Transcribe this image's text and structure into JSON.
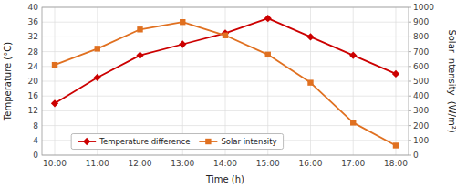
{
  "chart_data": {
    "type": "line",
    "xlabel": "Time (h)",
    "ylabel": "Temperature (°C)",
    "y2label": "Solar intensity  (W/m²)",
    "categories": [
      "10:00",
      "11:00",
      "12:00",
      "13:00",
      "14:00",
      "15:00",
      "16:00",
      "17:00",
      "18:00"
    ],
    "series": [
      {
        "name": "Temperature difference",
        "color": "#cc0000",
        "marker": "diamond",
        "values": [
          14,
          21,
          27,
          30,
          33,
          37,
          32,
          27,
          22
        ]
      },
      {
        "name": "Solar intensity",
        "color": "#e07020",
        "marker": "square",
        "axis": "y2",
        "values": [
          610,
          720,
          850,
          900,
          810,
          680,
          490,
          220,
          65
        ]
      }
    ],
    "ylim": [
      0,
      40
    ],
    "yticks": [
      0,
      4,
      8,
      12,
      16,
      20,
      24,
      28,
      32,
      36,
      40
    ],
    "y2lim": [
      0,
      1000
    ],
    "y2ticks": [
      0,
      100,
      200,
      300,
      400,
      500,
      600,
      700,
      800,
      900,
      1000
    ],
    "grid": true,
    "legend": "lower left"
  }
}
